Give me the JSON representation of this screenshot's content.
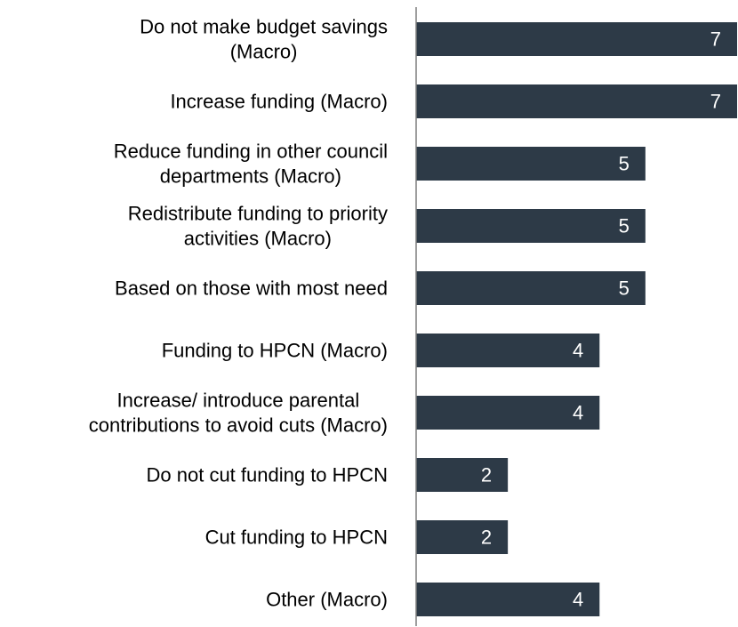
{
  "chart_data": {
    "type": "bar",
    "orientation": "horizontal",
    "categories": [
      [
        "Do not make budget savings",
        "(Macro)"
      ],
      [
        "Increase funding (Macro)"
      ],
      [
        "Reduce funding in other council",
        "departments (Macro)"
      ],
      [
        "Redistribute funding to priority",
        "activities (Macro)"
      ],
      [
        "Based on those with most need"
      ],
      [
        "Funding to HPCN (Macro)"
      ],
      [
        "Increase/ introduce parental",
        "contributions to avoid cuts (Macro)"
      ],
      [
        "Do not cut funding to HPCN"
      ],
      [
        "Cut funding to HPCN"
      ],
      [
        "Other (Macro)"
      ]
    ],
    "values": [
      7,
      7,
      5,
      5,
      5,
      4,
      4,
      2,
      2,
      4
    ],
    "xlim": [
      0,
      7
    ],
    "bar_color": "#2d3a47",
    "value_label_color": "#ffffff",
    "axis_color": "#7f7f7f",
    "grid": false,
    "legend": "none"
  }
}
